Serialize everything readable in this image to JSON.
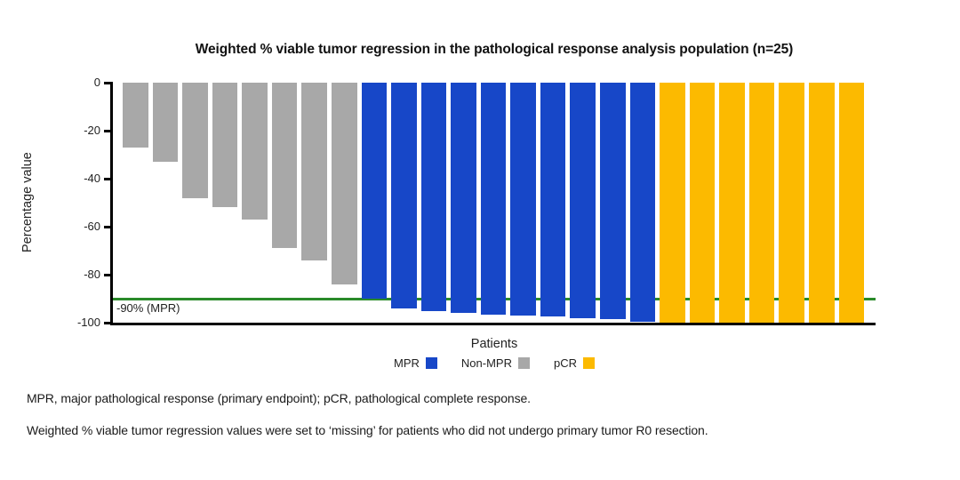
{
  "chart_data": {
    "type": "bar",
    "title": "Weighted % viable tumor regression in the pathological response analysis population (n=25)",
    "xlabel": "Patients",
    "ylabel": "Percentage value",
    "ylim": [
      -100,
      0
    ],
    "yticks": [
      0,
      -20,
      -40,
      -60,
      -80,
      -100
    ],
    "grid": false,
    "legend_position": "bottom",
    "reference_line": {
      "value": -90,
      "label": "-90% (MPR)",
      "color": "#2a8a2a"
    },
    "series": [
      {
        "name": "Non-MPR",
        "color": "#a8a8a8",
        "values": [
          -27,
          -33,
          -48,
          -52,
          -57,
          -69,
          -74,
          -84
        ]
      },
      {
        "name": "MPR",
        "color": "#1747c8",
        "values": [
          -90,
          -94,
          -95,
          -96,
          -96.5,
          -97,
          -97.5,
          -98,
          -98.5,
          -99.5
        ]
      },
      {
        "name": "pCR",
        "color": "#fcba00",
        "values": [
          -100,
          -100,
          -100,
          -100,
          -100,
          -100,
          -100
        ]
      }
    ],
    "legend": [
      {
        "label": "MPR",
        "color": "#1747c8"
      },
      {
        "label": "Non-MPR",
        "color": "#a8a8a8"
      },
      {
        "label": "pCR",
        "color": "#fcba00"
      }
    ]
  },
  "colors": {
    "axis": "#000000",
    "mpr_blue": "#1747c8",
    "non_mpr_gray": "#a8a8a8",
    "pcr_yellow": "#fcba00",
    "reference_green": "#2a8a2a"
  },
  "footnotes": [
    "MPR, major pathological response (primary endpoint); pCR, pathological complete response.",
    "Weighted % viable tumor regression values were set to ‘missing’ for patients who did not undergo primary tumor R0 resection."
  ]
}
